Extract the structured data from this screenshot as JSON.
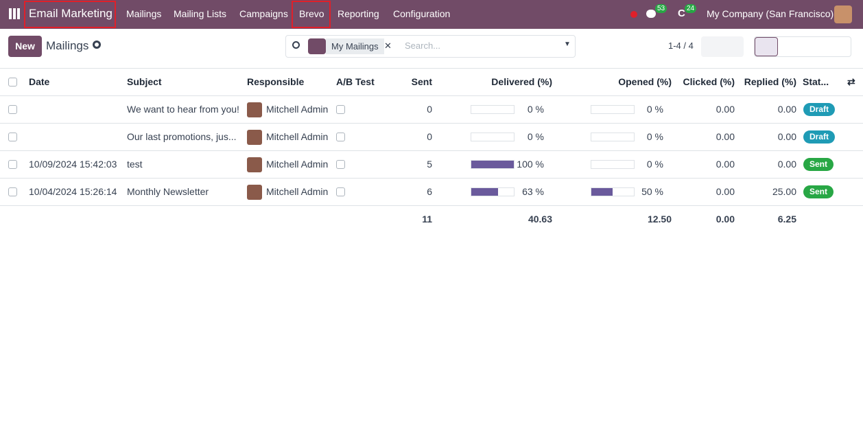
{
  "navbar": {
    "app": "Email Marketing",
    "menu": [
      "Mailings",
      "Mailing Lists",
      "Campaigns",
      "Brevo",
      "Reporting",
      "Configuration"
    ],
    "messages": "53",
    "activities": "24",
    "company": "My Company (San Francisco)"
  },
  "control": {
    "new": "New",
    "title": "Mailings",
    "facet": "My Mailings",
    "search_placeholder": "Search...",
    "pager": "1-4 / 4"
  },
  "table": {
    "columns": [
      "Date",
      "Subject",
      "Responsible",
      "A/B Test",
      "Sent",
      "Delivered (%)",
      "Opened (%)",
      "Clicked (%)",
      "Replied (%)",
      "Stat..."
    ],
    "rows": [
      {
        "date": null,
        "subject": "We want to hear from you!",
        "responsible": "Mitchell Admin",
        "sent": 0,
        "delivered": {
          "value": 0,
          "label": "0 %"
        },
        "opened": {
          "value": 0,
          "label": "0 %"
        },
        "clicked": "0.00",
        "replied": "0.00",
        "status": "Draft"
      },
      {
        "date": null,
        "subject": "Our last promotions, jus...",
        "responsible": "Mitchell Admin",
        "sent": 0,
        "delivered": {
          "value": 0,
          "label": "0 %"
        },
        "opened": {
          "value": 0,
          "label": "0 %"
        },
        "clicked": "0.00",
        "replied": "0.00",
        "status": "Draft"
      },
      {
        "date": "10/09/2024 15:42:03",
        "subject": "test",
        "responsible": "Mitchell Admin",
        "sent": 5,
        "delivered": {
          "value": 100,
          "label": "100 %"
        },
        "opened": {
          "value": 0,
          "label": "0 %"
        },
        "clicked": "0.00",
        "replied": "0.00",
        "status": "Sent"
      },
      {
        "date": "10/04/2024 15:26:14",
        "subject": "Monthly Newsletter",
        "responsible": "Mitchell Admin",
        "sent": 6,
        "delivered": {
          "value": 63,
          "label": "63 %"
        },
        "opened": {
          "value": 50,
          "label": "50 %"
        },
        "clicked": "0.00",
        "replied": "25.00",
        "status": "Sent"
      }
    ],
    "totals": {
      "sent": 11,
      "delivered": "40.63",
      "opened": "12.50",
      "clicked": "0.00",
      "replied": "6.25"
    }
  }
}
